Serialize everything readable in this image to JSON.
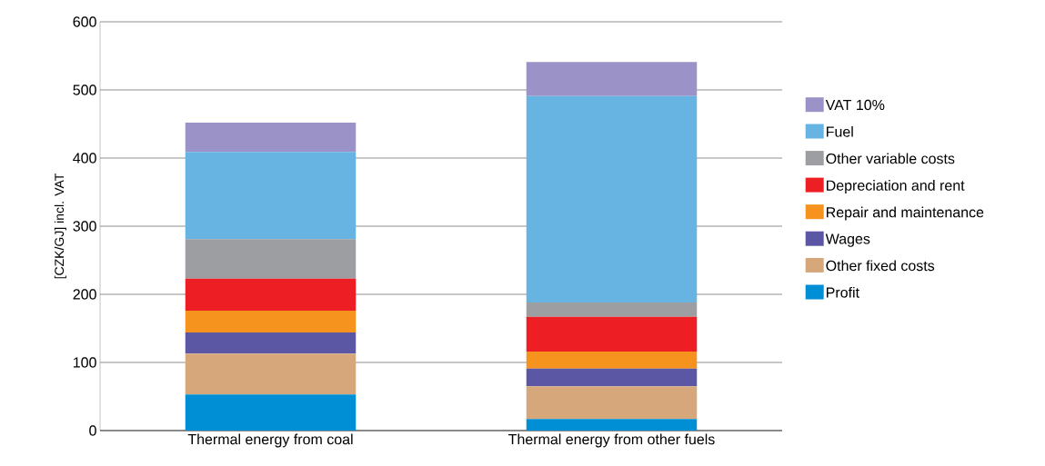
{
  "chart_data": {
    "type": "bar",
    "stacked": true,
    "ylabel": "[CZK/GJ] incl. VAT",
    "categories": [
      "Thermal energy from coal",
      "Thermal energy from other fuels"
    ],
    "series": [
      {
        "name": "Profit",
        "color": "#008fd5",
        "values": [
          53,
          17
        ]
      },
      {
        "name": "Other fixed costs",
        "color": "#d7a77c",
        "values": [
          60,
          48
        ]
      },
      {
        "name": "Wages",
        "color": "#5b57a4",
        "values": [
          31,
          26
        ]
      },
      {
        "name": "Repair and maintenance",
        "color": "#f6921e",
        "values": [
          32,
          25
        ]
      },
      {
        "name": "Depreciation and rent",
        "color": "#ee1e25",
        "values": [
          47,
          51
        ]
      },
      {
        "name": "Other variable costs",
        "color": "#9d9ea2",
        "values": [
          58,
          21
        ]
      },
      {
        "name": "Fuel",
        "color": "#67b4e3",
        "values": [
          128,
          303
        ]
      },
      {
        "name": "VAT 10%",
        "color": "#9b93c8",
        "values": [
          43,
          50
        ]
      }
    ],
    "ylim": [
      0,
      600
    ],
    "yticks": [
      0,
      100,
      200,
      300,
      400,
      500,
      600
    ],
    "grid": "y",
    "legend": "right"
  }
}
